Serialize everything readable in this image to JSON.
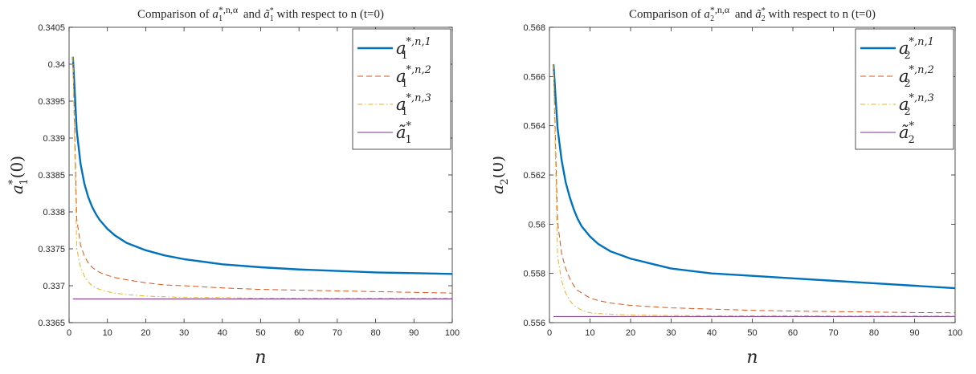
{
  "chart_data": [
    {
      "type": "line",
      "title": "Comparison of a₁^{*,n,α} and ã₁* with respect to n (t=0)",
      "title_parts": {
        "pre": "Comparison of ",
        "sym1": "a",
        "sub1": "1",
        "sup1": "*,n,α",
        "mid": " and ",
        "sym2": "ã",
        "sub2": "1",
        "sup2": "*",
        "post": " with respect to n (t=0)"
      },
      "xlabel": "n",
      "ylabel": "a₁*(0)",
      "ylabel_parts": {
        "base": "a",
        "sup": "*",
        "sub": "1",
        "tail": "(0)"
      },
      "xlim": [
        0,
        100
      ],
      "ylim": [
        0.3365,
        0.3405
      ],
      "xticks": [
        "0",
        "10",
        "20",
        "30",
        "40",
        "50",
        "60",
        "70",
        "80",
        "90",
        "100"
      ],
      "yticks": [
        "0.3365",
        "0.337",
        "0.3375",
        "0.338",
        "0.3385",
        "0.339",
        "0.3395",
        "0.34",
        "0.3405"
      ],
      "grid": false,
      "legend_position": "top-right",
      "x": [
        1,
        2,
        3,
        4,
        5,
        6,
        7,
        8,
        10,
        12,
        15,
        20,
        25,
        30,
        40,
        50,
        60,
        70,
        80,
        90,
        100
      ],
      "series": [
        {
          "name": "a₁^{*,n,1}",
          "legend": {
            "base": "a",
            "sub": "1",
            "sup": "*,n,1"
          },
          "color": "#0072BD",
          "dash": "",
          "width": 2.4,
          "values": [
            0.3401,
            0.3391,
            0.33865,
            0.33838,
            0.3382,
            0.33807,
            0.33797,
            0.33789,
            0.33777,
            0.33768,
            0.33758,
            0.33748,
            0.33741,
            0.33736,
            0.33729,
            0.33725,
            0.33722,
            0.3372,
            0.33718,
            0.33717,
            0.33716
          ]
        },
        {
          "name": "a₁^{*,n,2}",
          "legend": {
            "base": "a",
            "sub": "1",
            "sup": "*,n,2"
          },
          "color": "#D95319",
          "dash": "7,4",
          "width": 1,
          "values": [
            0.3401,
            0.3379,
            0.33755,
            0.3374,
            0.33731,
            0.33725,
            0.33721,
            0.33718,
            0.33714,
            0.33711,
            0.33708,
            0.33704,
            0.33701,
            0.337,
            0.33697,
            0.33695,
            0.33694,
            0.33693,
            0.33692,
            0.33691,
            0.3369
          ]
        },
        {
          "name": "a₁^{*,n,3}",
          "legend": {
            "base": "a",
            "sub": "1",
            "sup": "*,n,3"
          },
          "color": "#EDB120",
          "dash": "6,3,1.5,3",
          "width": 1,
          "values": [
            0.3401,
            0.3375,
            0.33725,
            0.33713,
            0.33705,
            0.337,
            0.33697,
            0.33695,
            0.33692,
            0.3369,
            0.33688,
            0.33686,
            0.33685,
            0.33684,
            0.33684,
            0.33683,
            0.33683,
            0.33683,
            0.33683,
            0.33683,
            0.33683
          ]
        },
        {
          "name": "ã₁*",
          "legend": {
            "base": "ã",
            "sub": "1",
            "sup": "*"
          },
          "color": "#7E2F8E",
          "dash": "",
          "width": 1,
          "values": [
            0.33682,
            0.33682,
            0.33682,
            0.33682,
            0.33682,
            0.33682,
            0.33682,
            0.33682,
            0.33682,
            0.33682,
            0.33682,
            0.33682,
            0.33682,
            0.33682,
            0.33682,
            0.33682,
            0.33682,
            0.33682,
            0.33682,
            0.33682,
            0.33682
          ]
        }
      ]
    },
    {
      "type": "line",
      "title": "Comparison of a₂^{*,n,α} and ã₂* with respect to n (t=0)",
      "title_parts": {
        "pre": "Comparison of ",
        "sym1": "a",
        "sub1": "2",
        "sup1": "*,n,α",
        "mid": " and ",
        "sym2": "ã",
        "sub2": "2",
        "sup2": "*",
        "post": " with respect to n (t=0)"
      },
      "xlabel": "n",
      "ylabel": "a₂*(0)",
      "ylabel_parts": {
        "base": "a",
        "sup": "*",
        "sub": "2",
        "tail": "(0)"
      },
      "xlim": [
        0,
        100
      ],
      "ylim": [
        0.556,
        0.568
      ],
      "xticks": [
        "0",
        "10",
        "20",
        "30",
        "40",
        "50",
        "60",
        "70",
        "80",
        "90",
        "100"
      ],
      "yticks": [
        "0.556",
        "0.558",
        "0.56",
        "0.562",
        "0.564",
        "0.566",
        "0.568"
      ],
      "grid": false,
      "legend_position": "top-right",
      "x": [
        1,
        2,
        3,
        4,
        5,
        6,
        7,
        8,
        10,
        12,
        15,
        20,
        25,
        30,
        40,
        50,
        60,
        70,
        80,
        90,
        100
      ],
      "series": [
        {
          "name": "a₂^{*,n,1}",
          "legend": {
            "base": "a",
            "sub": "2",
            "sup": "*,n,1"
          },
          "color": "#0072BD",
          "dash": "",
          "width": 2.4,
          "values": [
            0.5665,
            0.5639,
            0.5626,
            0.5617,
            0.5611,
            0.5606,
            0.5602,
            0.5599,
            0.5595,
            0.5592,
            0.5589,
            0.5586,
            0.5584,
            0.5582,
            0.558,
            0.5579,
            0.5578,
            0.5577,
            0.5576,
            0.5575,
            0.5574
          ]
        },
        {
          "name": "a₂^{*,n,2}",
          "legend": {
            "base": "a",
            "sub": "2",
            "sup": "*,n,2"
          },
          "color": "#D95319",
          "dash": "7,4",
          "width": 1,
          "values": [
            0.5665,
            0.5601,
            0.5588,
            0.5582,
            0.5578,
            0.5575,
            0.5573,
            0.5572,
            0.557,
            0.5569,
            0.5568,
            0.5567,
            0.55665,
            0.5566,
            0.55655,
            0.5565,
            0.55647,
            0.55645,
            0.55643,
            0.55641,
            0.5564
          ]
        },
        {
          "name": "a₂^{*,n,3}",
          "legend": {
            "base": "a",
            "sub": "2",
            "sup": "*,n,3"
          },
          "color": "#EDB120",
          "dash": "6,3,1.5,3",
          "width": 1,
          "values": [
            0.5665,
            0.5587,
            0.5577,
            0.5572,
            0.5569,
            0.5567,
            0.5566,
            0.5565,
            0.5564,
            0.55637,
            0.55634,
            0.55631,
            0.5563,
            0.55629,
            0.55628,
            0.55628,
            0.55628,
            0.55627,
            0.55627,
            0.55627,
            0.55627
          ]
        },
        {
          "name": "ã₂*",
          "legend": {
            "base": "ã",
            "sub": "2",
            "sup": "*"
          },
          "color": "#7E2F8E",
          "dash": "",
          "width": 1,
          "values": [
            0.55625,
            0.55625,
            0.55625,
            0.55625,
            0.55625,
            0.55625,
            0.55625,
            0.55625,
            0.55625,
            0.55625,
            0.55625,
            0.55625,
            0.55625,
            0.55625,
            0.55625,
            0.55625,
            0.55625,
            0.55625,
            0.55625,
            0.55625,
            0.55625
          ]
        }
      ]
    }
  ]
}
